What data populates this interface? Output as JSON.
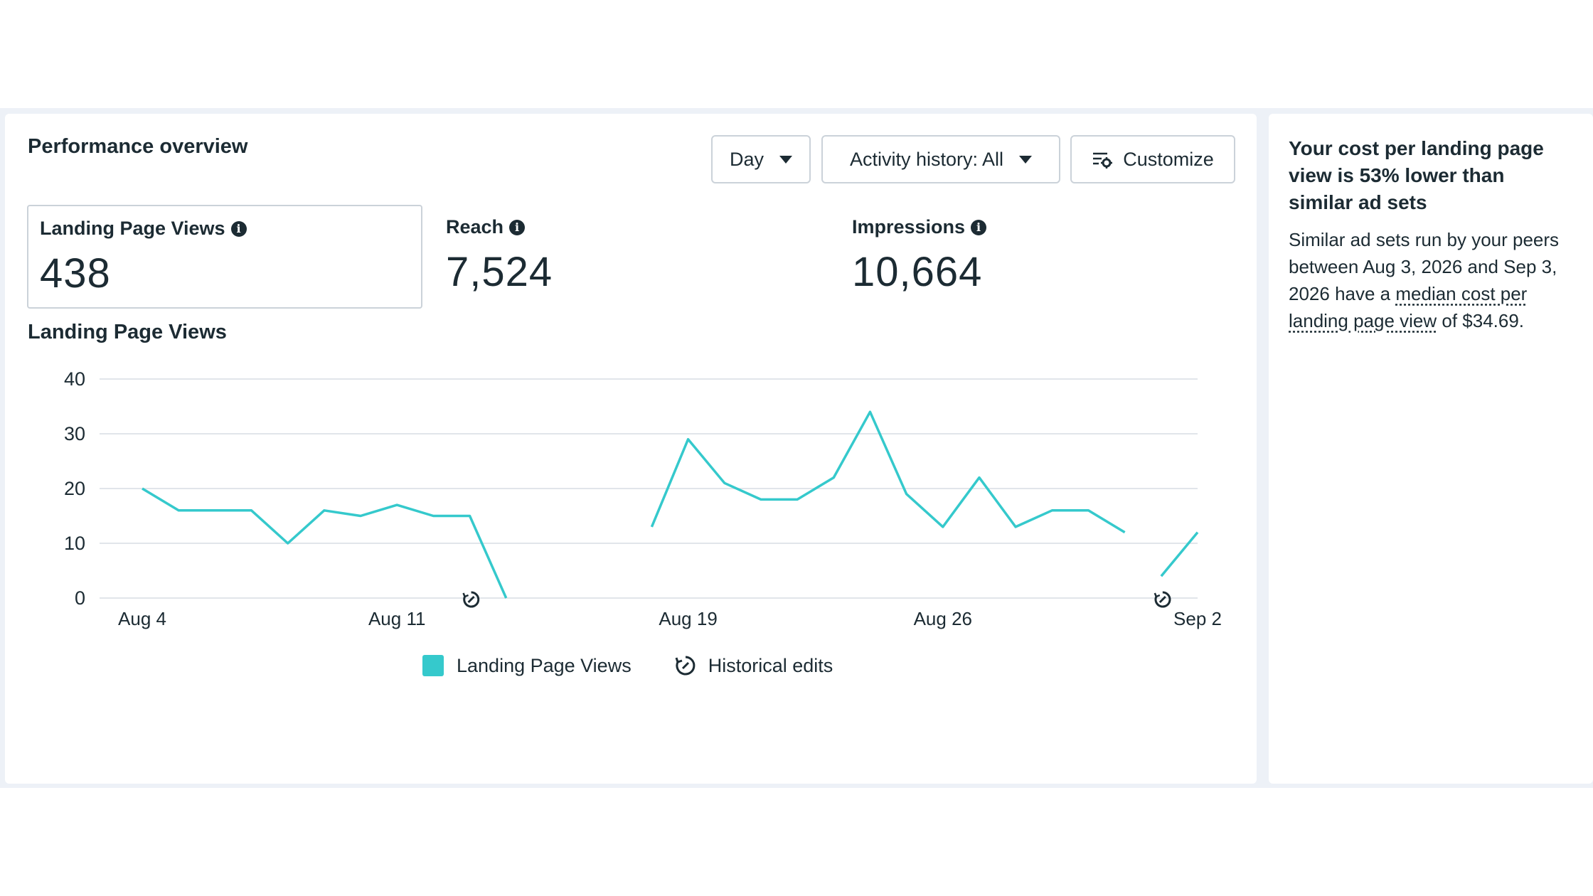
{
  "main": {
    "title": "Performance overview",
    "controls": {
      "day_label": "Day",
      "activity_label": "Activity history: All",
      "customize_label": "Customize"
    },
    "metrics": [
      {
        "label": "Landing Page Views",
        "value": "438",
        "selected": true
      },
      {
        "label": "Reach",
        "value": "7,524",
        "selected": false
      },
      {
        "label": "Impressions",
        "value": "10,664",
        "selected": false
      }
    ],
    "chart_title": "Landing Page Views",
    "legend": {
      "series_label": "Landing Page Views",
      "edits_label": "Historical edits"
    }
  },
  "chart_data": {
    "type": "line",
    "title": "Landing Page Views",
    "xlabel": "",
    "ylabel": "",
    "ylim": [
      0,
      40
    ],
    "y_ticks": [
      0,
      10,
      20,
      30,
      40
    ],
    "x_ticks": [
      {
        "day": 0,
        "label": "Aug 4"
      },
      {
        "day": 7,
        "label": "Aug 11"
      },
      {
        "day": 15,
        "label": "Aug 19"
      },
      {
        "day": 22,
        "label": "Aug 26"
      },
      {
        "day": 29,
        "label": "Sep 2"
      }
    ],
    "grid": true,
    "color": "#35c9cc",
    "series": [
      {
        "name": "Landing Page Views",
        "segments": [
          [
            [
              0,
              20
            ],
            [
              1,
              16
            ],
            [
              2,
              16
            ],
            [
              3,
              16
            ],
            [
              4,
              10
            ],
            [
              5,
              16
            ],
            [
              6,
              15
            ],
            [
              7,
              17
            ],
            [
              8,
              15
            ],
            [
              9,
              15
            ],
            [
              10,
              0
            ]
          ],
          [
            [
              14,
              13
            ],
            [
              15,
              29
            ],
            [
              16,
              21
            ],
            [
              17,
              18
            ],
            [
              18,
              18
            ],
            [
              19,
              22
            ],
            [
              20,
              34
            ],
            [
              21,
              19
            ],
            [
              22,
              13
            ],
            [
              23,
              22
            ],
            [
              24,
              13
            ],
            [
              25,
              16
            ],
            [
              26,
              16
            ],
            [
              27,
              12
            ]
          ],
          [
            [
              28,
              4
            ],
            [
              29,
              12
            ]
          ]
        ]
      }
    ],
    "historical_edits": [
      9,
      28
    ]
  },
  "side": {
    "title": "Your cost per landing page view is 53% lower than similar ad sets",
    "body_pre": "Similar ad sets run by your peers between Aug 3, 2026 and Sep 3, 2026 have a ",
    "body_link": "median cost per landing page view",
    "body_post": " of $34.69."
  }
}
